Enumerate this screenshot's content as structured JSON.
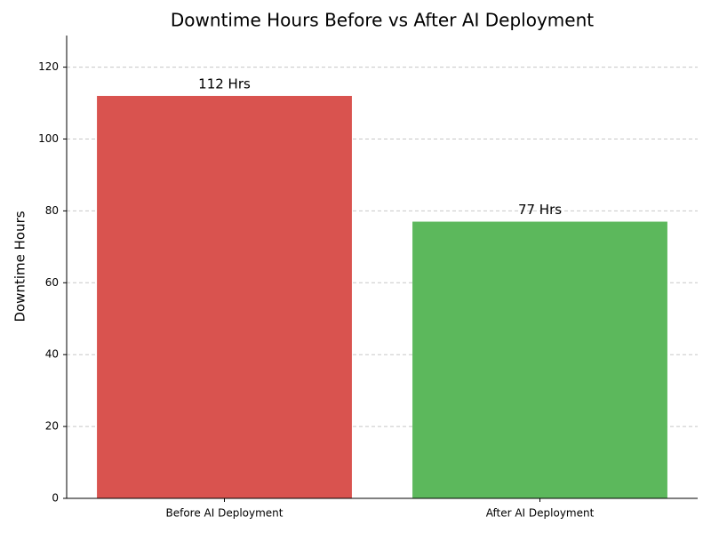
{
  "chart_data": {
    "type": "bar",
    "title": "Downtime Hours Before vs After AI Deployment",
    "y_label": "Downtime Hours",
    "categories": [
      "Before AI Deployment",
      "After AI Deployment"
    ],
    "values": [
      112,
      77
    ],
    "value_labels": [
      "112 Hrs",
      "77 Hrs"
    ],
    "colors": [
      "#d9534f",
      "#5cb85c"
    ],
    "ylim": [
      0,
      128.8
    ],
    "yticks": [
      0,
      20,
      40,
      60,
      80,
      100,
      120
    ],
    "grid": true
  }
}
